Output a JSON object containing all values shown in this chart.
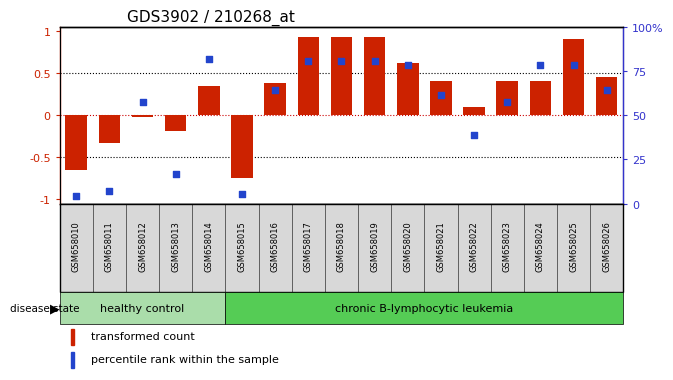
{
  "title": "GDS3902 / 210268_at",
  "samples": [
    "GSM658010",
    "GSM658011",
    "GSM658012",
    "GSM658013",
    "GSM658014",
    "GSM658015",
    "GSM658016",
    "GSM658017",
    "GSM658018",
    "GSM658019",
    "GSM658020",
    "GSM658021",
    "GSM658022",
    "GSM658023",
    "GSM658024",
    "GSM658025",
    "GSM658026"
  ],
  "bar_values": [
    -0.65,
    -0.33,
    -0.02,
    -0.19,
    0.35,
    -0.75,
    0.38,
    0.93,
    0.93,
    0.93,
    0.62,
    0.4,
    0.1,
    0.4,
    0.4,
    0.9,
    0.45
  ],
  "dot_values_pct": [
    2,
    5,
    58,
    15,
    83,
    3,
    65,
    82,
    82,
    82,
    80,
    62,
    38,
    58,
    80,
    80,
    65
  ],
  "bar_color": "#cc2200",
  "dot_color": "#2244cc",
  "ylim": [
    -1.05,
    1.05
  ],
  "dotted_lines": [
    -0.5,
    0.0,
    0.5
  ],
  "healthy_control_count": 5,
  "group_labels": [
    "healthy control",
    "chronic B-lymphocytic leukemia"
  ],
  "group_color_hc": "#aaddaa",
  "group_color_cl": "#55cc55",
  "disease_state_label": "disease state",
  "legend_items": [
    "transformed count",
    "percentile rank within the sample"
  ],
  "background_color": "#ffffff",
  "plot_bg_color": "#ffffff",
  "title_fontsize": 11,
  "ytick_left_color": "#cc2200",
  "ytick_right_color": "#3333cc",
  "right_ytick_labels": [
    "0",
    "25",
    "50",
    "75",
    "100%"
  ],
  "right_ytick_vals": [
    0,
    25,
    50,
    75,
    100
  ],
  "left_ytick_labels": [
    "-1",
    "-0.5",
    "0",
    "0.5",
    "1"
  ],
  "left_ytick_vals": [
    -1,
    -0.5,
    0,
    0.5,
    1
  ],
  "name_box_color": "#d8d8d8",
  "name_box_edge_color": "#444444"
}
